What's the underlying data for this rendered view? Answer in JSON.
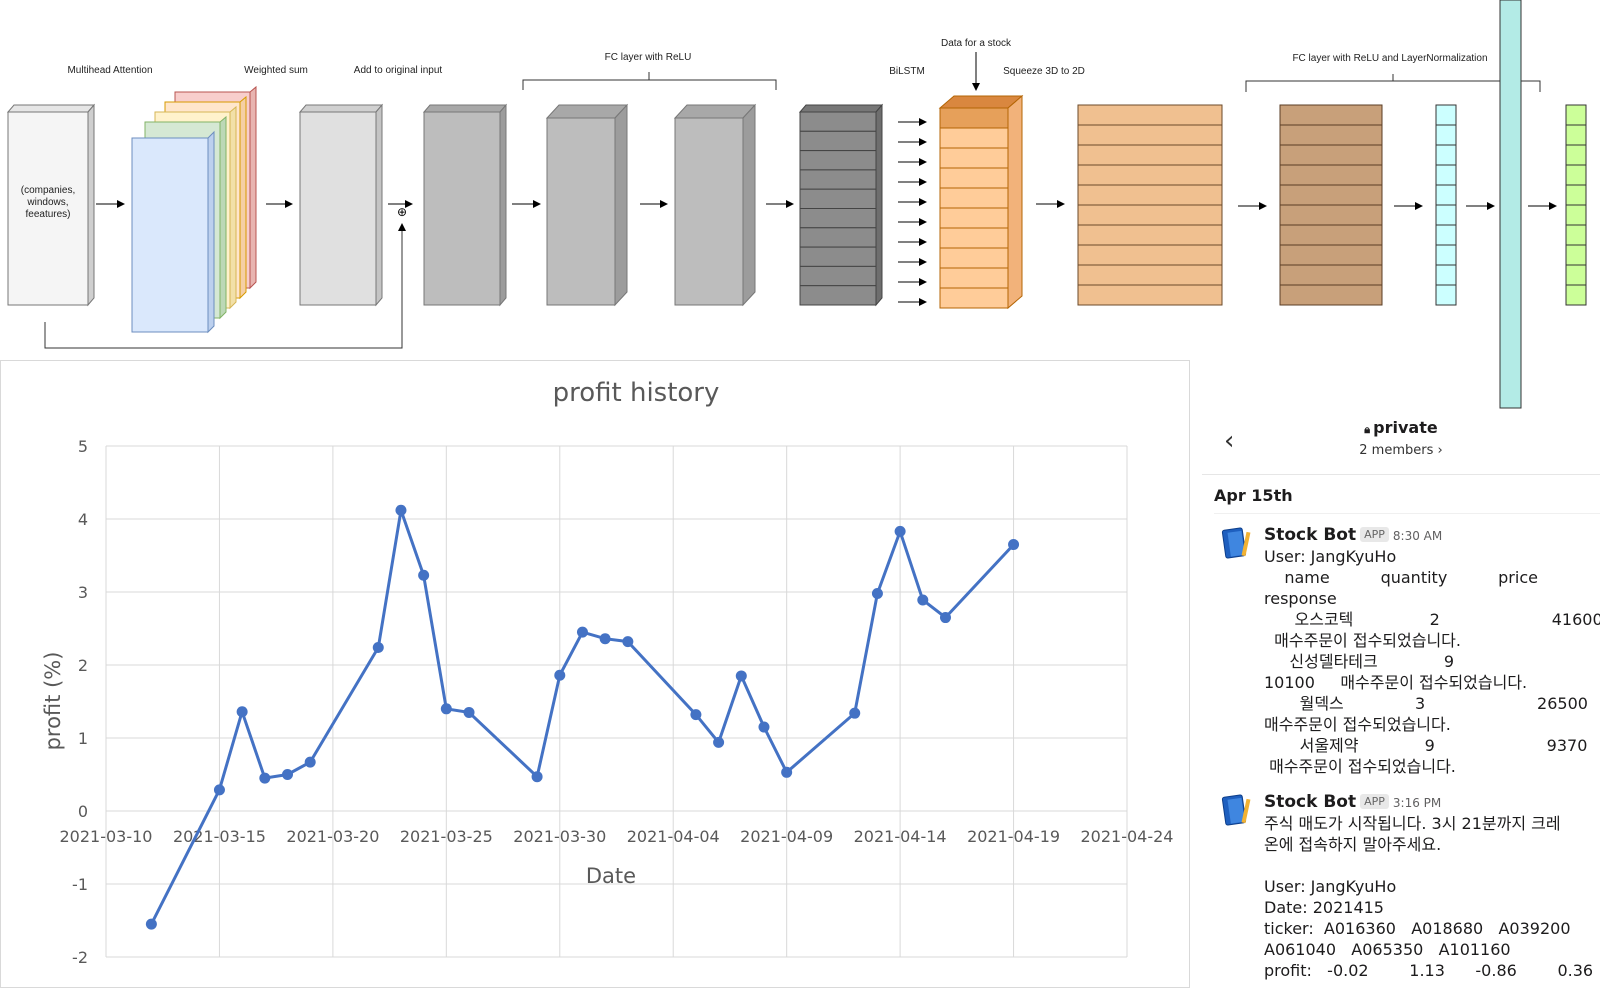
{
  "diagram": {
    "labels": {
      "multihead": "Multihead Attention",
      "weighted_sum": "Weighted sum",
      "add_input": "Add to original input",
      "fc_relu": "FC layer with ReLU",
      "data_stock": "Data for a stock",
      "bilstm": "BiLSTM",
      "squeeze": "Squeeze 3D to 2D",
      "fc_relu_ln": "FC layer with ReLU and LayerNormalization",
      "input_line1": "(companies,",
      "input_line2": "windows,",
      "input_line3": "feeatures)",
      "plus": "⊕"
    },
    "colors": {
      "input": "#f5f5f5",
      "head_blue": "#dae8fc",
      "head_green": "#d5e8d4",
      "head_yellow": "#fff2cc",
      "head_orange": "#ffe6cc",
      "head_red": "#f8cecc",
      "gray_light": "#e0e0e0",
      "gray_mid": "#bdbdbd",
      "gray_dark": "#8c8c8c",
      "orange_highlight": "#e6a05a",
      "orange_light": "#ffcc99",
      "tan": "#f0c090",
      "brown": "#c8a07a",
      "cyan": "#ccffff",
      "teal": "#b3ebe6",
      "lime": "#ccff99"
    }
  },
  "chart_data": {
    "type": "line",
    "title": "profit history",
    "xlabel": "Date",
    "ylabel": "profit (%)",
    "ylim": [
      -2,
      5
    ],
    "xlim": [
      "2021-03-10",
      "2021-04-24"
    ],
    "x_ticks": [
      "2021-03-10",
      "2021-03-15",
      "2021-03-20",
      "2021-03-25",
      "2021-03-30",
      "2021-04-04",
      "2021-04-09",
      "2021-04-14",
      "2021-04-19",
      "2021-04-24"
    ],
    "y_ticks": [
      "5",
      "4",
      "3",
      "2",
      "1",
      "0",
      "-1",
      "-2"
    ],
    "grid": true,
    "color": "#4472c4",
    "points": [
      {
        "x": "2021-03-12",
        "y": -1.55
      },
      {
        "x": "2021-03-15",
        "y": 0.29
      },
      {
        "x": "2021-03-16",
        "y": 1.36
      },
      {
        "x": "2021-03-17",
        "y": 0.45
      },
      {
        "x": "2021-03-18",
        "y": 0.5
      },
      {
        "x": "2021-03-19",
        "y": 0.67
      },
      {
        "x": "2021-03-22",
        "y": 2.24
      },
      {
        "x": "2021-03-23",
        "y": 4.12
      },
      {
        "x": "2021-03-24",
        "y": 3.23
      },
      {
        "x": "2021-03-25",
        "y": 1.4
      },
      {
        "x": "2021-03-26",
        "y": 1.35
      },
      {
        "x": "2021-03-29",
        "y": 0.47
      },
      {
        "x": "2021-03-30",
        "y": 1.86
      },
      {
        "x": "2021-03-31",
        "y": 2.45
      },
      {
        "x": "2021-04-01",
        "y": 2.36
      },
      {
        "x": "2021-04-02",
        "y": 2.32
      },
      {
        "x": "2021-04-05",
        "y": 1.32
      },
      {
        "x": "2021-04-06",
        "y": 0.94
      },
      {
        "x": "2021-04-07",
        "y": 1.85
      },
      {
        "x": "2021-04-08",
        "y": 1.15
      },
      {
        "x": "2021-04-09",
        "y": 0.53
      },
      {
        "x": "2021-04-12",
        "y": 1.34
      },
      {
        "x": "2021-04-13",
        "y": 2.98
      },
      {
        "x": "2021-04-14",
        "y": 3.83
      },
      {
        "x": "2021-04-15",
        "y": 2.89
      },
      {
        "x": "2021-04-16",
        "y": 2.65
      },
      {
        "x": "2021-04-19",
        "y": 3.65
      }
    ]
  },
  "chat": {
    "channel": "private",
    "members": "2 members ›",
    "date_divider": "Apr 15th",
    "messages": [
      {
        "sender": "Stock Bot",
        "badge": "APP",
        "time": "8:30 AM",
        "lines": [
          "User: JangKyuHo",
          "    name          quantity          price",
          "response",
          "      오스코텍               2                      41600",
          "  매수주문이 접수되었습니다.",
          "     신성델타테크             9",
          "10100     매수주문이 접수되었습니다.",
          "       월덱스              3                      26500",
          "매수주문이 접수되었습니다.",
          "       서울제약             9                      9370",
          " 매수주문이 접수되었습니다."
        ]
      },
      {
        "sender": "Stock Bot",
        "badge": "APP",
        "time": "3:16 PM",
        "lines": [
          "주식 매도가 시작됩니다. 3시 21분까지 크레",
          "온에 접속하지 말아주세요.",
          "",
          "User: JangKyuHo",
          "Date: 2021415",
          "ticker:  A016360   A018680   A039200",
          "A061040   A065350   A101160",
          "profit:   -0.02        1.13      -0.86        0.36"
        ]
      }
    ]
  }
}
